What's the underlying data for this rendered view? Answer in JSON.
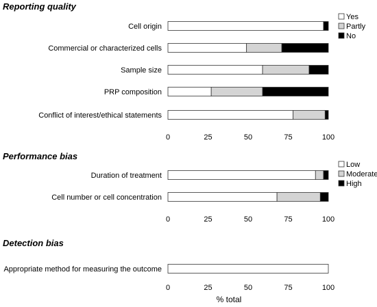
{
  "colors": {
    "seg1": "#ffffff",
    "seg2": "#d4d4d4",
    "seg3": "#000000"
  },
  "chart_data": [
    {
      "type": "bar",
      "orientation": "horizontal",
      "stacked": true,
      "title": "Reporting quality",
      "categories": [
        "Cell origin",
        "Commercial or characterized cells",
        "Sample size",
        "PRP composition",
        "Conflict of interest/ethical statements"
      ],
      "series": [
        {
          "name": "Yes",
          "values": [
            97,
            49,
            59,
            27,
            78
          ]
        },
        {
          "name": "Partly",
          "values": [
            0,
            22,
            29,
            32,
            20
          ]
        },
        {
          "name": "No",
          "values": [
            3,
            29,
            12,
            41,
            2
          ]
        }
      ],
      "xlim": [
        0,
        100
      ],
      "xticks": [
        "0",
        "25",
        "50",
        "75",
        "100"
      ],
      "xlabel": "",
      "legend": "top-right"
    },
    {
      "type": "bar",
      "orientation": "horizontal",
      "stacked": true,
      "title": "Performance bias",
      "categories": [
        "Duration of treatment",
        "Cell number or  cell concentration"
      ],
      "series": [
        {
          "name": "Low",
          "values": [
            92,
            68
          ]
        },
        {
          "name": "Moderate",
          "values": [
            5,
            27
          ]
        },
        {
          "name": "High",
          "values": [
            3,
            5
          ]
        }
      ],
      "xlim": [
        0,
        100
      ],
      "xticks": [
        "0",
        "25",
        "50",
        "75",
        "100"
      ],
      "xlabel": "",
      "legend": "top-right"
    },
    {
      "type": "bar",
      "orientation": "horizontal",
      "stacked": true,
      "title": "Detection bias",
      "categories": [
        "Appropriate method for measuring the outcome"
      ],
      "series": [
        {
          "name": "",
          "values": [
            100
          ]
        }
      ],
      "xlim": [
        0,
        100
      ],
      "xticks": [
        "0",
        "25",
        "50",
        "75",
        "100"
      ],
      "xlabel": "% total",
      "legend": ""
    }
  ]
}
